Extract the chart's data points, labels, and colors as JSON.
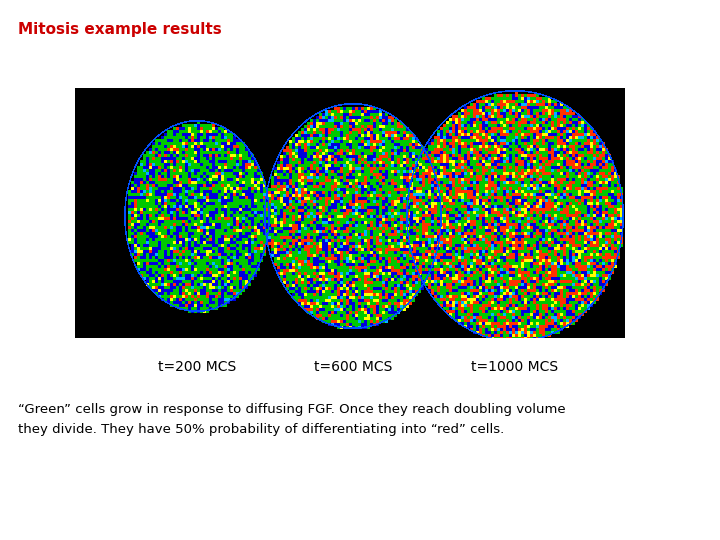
{
  "title": "Mitosis example results",
  "title_color": "#cc0000",
  "title_fontsize": 11,
  "title_bold": true,
  "bg_color": "#ffffff",
  "image_bg": [
    0,
    0,
    0
  ],
  "labels": [
    "t=200 MCS",
    "t=600 MCS",
    "t=1000 MCS"
  ],
  "label_fontsize": 10,
  "description_line1": "“Green” cells grow in response to diffusing FGF. Once they reach doubling volume",
  "description_line2": "they divide. They have 50% probability of differentiating into “red” cells.",
  "description_fontsize": 9.5,
  "seed": 42,
  "colors_stage0": {
    "green": [
      0,
      200,
      0
    ],
    "blue": [
      0,
      0,
      220
    ],
    "red": [
      255,
      50,
      0
    ],
    "yellow": [
      255,
      255,
      0
    ],
    "cyan": [
      0,
      180,
      255
    ],
    "probs": [
      0.5,
      0.32,
      0.08,
      0.06,
      0.04
    ]
  },
  "colors_stage1": {
    "green": [
      0,
      200,
      0
    ],
    "blue": [
      0,
      0,
      220
    ],
    "red": [
      255,
      50,
      0
    ],
    "yellow": [
      255,
      255,
      0
    ],
    "cyan": [
      0,
      180,
      255
    ],
    "probs": [
      0.42,
      0.25,
      0.2,
      0.08,
      0.05
    ]
  },
  "colors_stage2": {
    "green": [
      0,
      200,
      0
    ],
    "blue": [
      0,
      0,
      220
    ],
    "red": [
      255,
      50,
      0
    ],
    "yellow": [
      255,
      255,
      0
    ],
    "cyan": [
      0,
      180,
      255
    ],
    "probs": [
      0.38,
      0.2,
      0.28,
      0.08,
      0.06
    ]
  }
}
